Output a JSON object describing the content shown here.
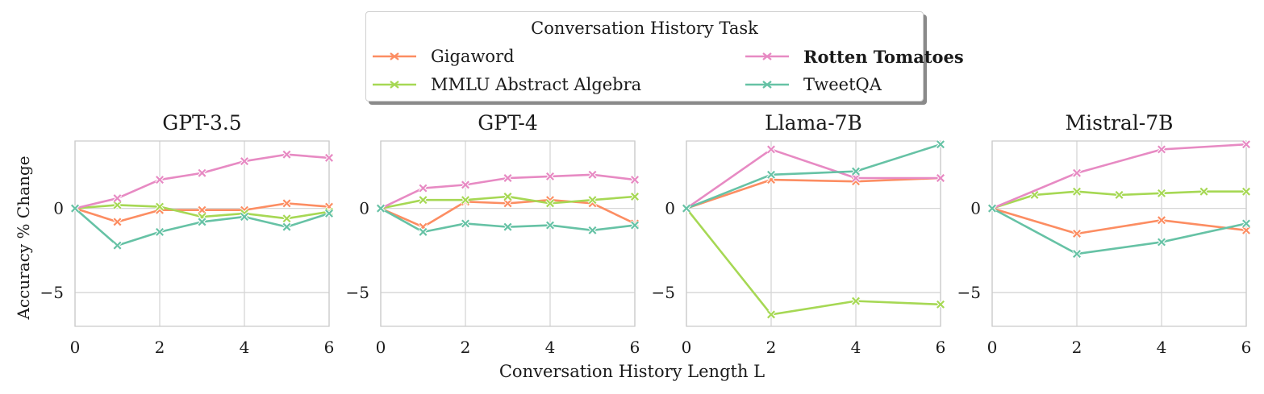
{
  "figure": {
    "xaxis_title": "Conversation History Length L",
    "yaxis_title": "Accuracy % Change"
  },
  "legend": {
    "title": "Conversation History Task",
    "entries": [
      {
        "label": "Gigaword",
        "color": "#fc8d62",
        "bold": false
      },
      {
        "label": "MMLU Abstract Algebra",
        "color": "#a6d854",
        "bold": false
      },
      {
        "label": "Rotten Tomatoes",
        "color": "#e78ac3",
        "bold": true
      },
      {
        "label": "TweetQA",
        "color": "#66c2a5",
        "bold": false
      }
    ]
  },
  "chart_data": [
    {
      "type": "line",
      "title": "GPT-3.5",
      "xlabel": "",
      "ylabel": "Accuracy % Change",
      "xlim": [
        0,
        6
      ],
      "ylim": [
        -7,
        4
      ],
      "xticks": [
        0,
        2,
        4,
        6
      ],
      "yticks": [
        -5,
        0
      ],
      "grid": true,
      "marker": "x",
      "series": [
        {
          "name": "Gigaword",
          "color": "#fc8d62",
          "x": [
            0,
            1,
            2,
            3,
            4,
            5,
            6
          ],
          "y": [
            0,
            -0.8,
            -0.1,
            -0.1,
            -0.1,
            0.3,
            0.1
          ]
        },
        {
          "name": "MMLU Abstract Algebra",
          "color": "#a6d854",
          "x": [
            0,
            1,
            2,
            3,
            4,
            5,
            6
          ],
          "y": [
            0,
            0.2,
            0.1,
            -0.5,
            -0.3,
            -0.6,
            -0.2
          ]
        },
        {
          "name": "Rotten Tomatoes",
          "color": "#e78ac3",
          "x": [
            0,
            1,
            2,
            3,
            4,
            5,
            6
          ],
          "y": [
            0,
            0.6,
            1.7,
            2.1,
            2.8,
            3.2,
            3.0
          ]
        },
        {
          "name": "TweetQA",
          "color": "#66c2a5",
          "x": [
            0,
            1,
            2,
            3,
            4,
            5,
            6
          ],
          "y": [
            0,
            -2.2,
            -1.4,
            -0.8,
            -0.5,
            -1.1,
            -0.3
          ]
        }
      ]
    },
    {
      "type": "line",
      "title": "GPT-4",
      "xlabel": "",
      "ylabel": "",
      "xlim": [
        0,
        6
      ],
      "ylim": [
        -7,
        4
      ],
      "xticks": [
        0,
        2,
        4,
        6
      ],
      "yticks": [
        -5,
        0
      ],
      "grid": true,
      "marker": "x",
      "series": [
        {
          "name": "Gigaword",
          "color": "#fc8d62",
          "x": [
            0,
            1,
            2,
            3,
            4,
            5,
            6
          ],
          "y": [
            0,
            -1.1,
            0.4,
            0.3,
            0.5,
            0.3,
            -0.9
          ]
        },
        {
          "name": "MMLU Abstract Algebra",
          "color": "#a6d854",
          "x": [
            0,
            1,
            2,
            3,
            4,
            5,
            6
          ],
          "y": [
            0,
            0.5,
            0.5,
            0.7,
            0.3,
            0.5,
            0.7
          ]
        },
        {
          "name": "Rotten Tomatoes",
          "color": "#e78ac3",
          "x": [
            0,
            1,
            2,
            3,
            4,
            5,
            6
          ],
          "y": [
            0,
            1.2,
            1.4,
            1.8,
            1.9,
            2.0,
            1.7
          ]
        },
        {
          "name": "TweetQA",
          "color": "#66c2a5",
          "x": [
            0,
            1,
            2,
            3,
            4,
            5,
            6
          ],
          "y": [
            0,
            -1.4,
            -0.9,
            -1.1,
            -1.0,
            -1.3,
            -1.0
          ]
        }
      ]
    },
    {
      "type": "line",
      "title": "Llama-7B",
      "xlabel": "",
      "ylabel": "",
      "xlim": [
        0,
        6
      ],
      "ylim": [
        -7,
        4
      ],
      "xticks": [
        0,
        2,
        4,
        6
      ],
      "yticks": [
        -5,
        0
      ],
      "grid": true,
      "marker": "x",
      "series": [
        {
          "name": "Gigaword",
          "color": "#fc8d62",
          "x": [
            0,
            2,
            4,
            6
          ],
          "y": [
            0,
            1.7,
            1.6,
            1.8
          ]
        },
        {
          "name": "MMLU Abstract Algebra",
          "color": "#a6d854",
          "x": [
            0,
            2,
            4,
            6
          ],
          "y": [
            0,
            -6.3,
            -5.5,
            -5.7
          ]
        },
        {
          "name": "Rotten Tomatoes",
          "color": "#e78ac3",
          "x": [
            0,
            2,
            4,
            6
          ],
          "y": [
            0,
            3.5,
            1.8,
            1.8
          ]
        },
        {
          "name": "TweetQA",
          "color": "#66c2a5",
          "x": [
            0,
            2,
            4,
            6
          ],
          "y": [
            0,
            2.0,
            2.2,
            3.8
          ]
        }
      ]
    },
    {
      "type": "line",
      "title": "Mistral-7B",
      "xlabel": "",
      "ylabel": "",
      "xlim": [
        0,
        6
      ],
      "ylim": [
        -7,
        4
      ],
      "xticks": [
        0,
        2,
        4,
        6
      ],
      "yticks": [
        -5,
        0
      ],
      "grid": true,
      "marker": "x",
      "series": [
        {
          "name": "Gigaword",
          "color": "#fc8d62",
          "x": [
            0,
            2,
            4,
            6
          ],
          "y": [
            0,
            -1.5,
            -0.7,
            -1.3
          ]
        },
        {
          "name": "MMLU Abstract Algebra",
          "color": "#a6d854",
          "x": [
            0,
            1,
            2,
            3,
            4,
            5,
            6
          ],
          "y": [
            0,
            0.8,
            1.0,
            0.8,
            0.9,
            1.0,
            1.0
          ]
        },
        {
          "name": "Rotten Tomatoes",
          "color": "#e78ac3",
          "x": [
            0,
            2,
            4,
            6
          ],
          "y": [
            0,
            2.1,
            3.5,
            3.8
          ]
        },
        {
          "name": "TweetQA",
          "color": "#66c2a5",
          "x": [
            0,
            2,
            4,
            6
          ],
          "y": [
            0,
            -2.7,
            -2.0,
            -0.9
          ]
        }
      ]
    }
  ]
}
